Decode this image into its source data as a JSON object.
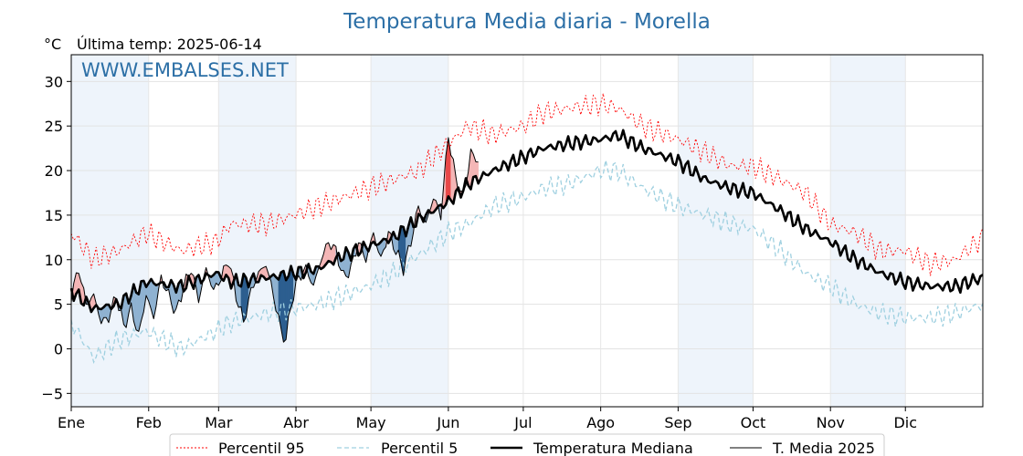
{
  "chart_data": {
    "type": "line",
    "title": "Temperatura Media diaria - Morella",
    "unit_label": "°C",
    "last_temp_label": "Última temp: 2025-06-14",
    "watermark": "WWW.EMBALSES.NET",
    "ylim": [
      -6.5,
      33
    ],
    "y_ticks": [
      -5,
      0,
      5,
      10,
      15,
      20,
      25,
      30
    ],
    "y_tick_labels": [
      "−5",
      "0",
      "5",
      "10",
      "15",
      "20",
      "25",
      "30"
    ],
    "month_labels": [
      "Ene",
      "Feb",
      "Mar",
      "Abr",
      "May",
      "Jun",
      "Jul",
      "Ago",
      "Sep",
      "Oct",
      "Nov",
      "Dic"
    ],
    "month_start_days": [
      1,
      32,
      60,
      91,
      121,
      152,
      182,
      213,
      244,
      274,
      305,
      335
    ],
    "x_days": [
      1,
      366
    ],
    "grid": true,
    "shaded_months": [
      "Ene",
      "Mar",
      "May",
      "Sep",
      "Nov"
    ],
    "colors": {
      "p95": "#ff0000",
      "p5": "#9fd0e0",
      "median": "#000000",
      "current": "#000000",
      "above": "#f4b6b6",
      "below": "#8fb2d1",
      "below_extreme": "#2c5e8f",
      "above_extreme": "#e84848",
      "shade": "#eef4fb",
      "title": "#2c6fa6"
    },
    "legend": {
      "position": "bottom-center",
      "entries": [
        "Percentil 95",
        "Percentil 5",
        "Temperatura Mediana",
        "T. Media 2025"
      ]
    },
    "series": [
      {
        "name": "Temperatura Mediana",
        "key": "median",
        "points": [
          [
            1,
            6.5
          ],
          [
            10,
            4.5
          ],
          [
            20,
            5
          ],
          [
            31,
            7.5
          ],
          [
            45,
            7
          ],
          [
            59,
            8.5
          ],
          [
            65,
            7.5
          ],
          [
            80,
            8
          ],
          [
            90,
            8.5
          ],
          [
            100,
            9
          ],
          [
            110,
            10.5
          ],
          [
            120,
            11.5
          ],
          [
            130,
            12.5
          ],
          [
            140,
            14.5
          ],
          [
            152,
            16.5
          ],
          [
            160,
            18.5
          ],
          [
            170,
            20
          ],
          [
            182,
            21.5
          ],
          [
            190,
            22.5
          ],
          [
            200,
            23
          ],
          [
            213,
            23.5
          ],
          [
            220,
            24
          ],
          [
            230,
            22.5
          ],
          [
            244,
            21
          ],
          [
            255,
            19
          ],
          [
            265,
            18
          ],
          [
            274,
            17.5
          ],
          [
            285,
            15.5
          ],
          [
            295,
            13.5
          ],
          [
            305,
            12
          ],
          [
            315,
            10
          ],
          [
            325,
            8.5
          ],
          [
            335,
            7.5
          ],
          [
            345,
            7
          ],
          [
            355,
            7
          ],
          [
            366,
            8
          ]
        ]
      },
      {
        "name": "Percentil 95",
        "key": "p95",
        "points": [
          [
            1,
            13
          ],
          [
            10,
            10
          ],
          [
            20,
            11
          ],
          [
            31,
            13
          ],
          [
            45,
            11
          ],
          [
            59,
            12
          ],
          [
            65,
            14
          ],
          [
            80,
            14
          ],
          [
            90,
            15
          ],
          [
            100,
            16
          ],
          [
            110,
            17
          ],
          [
            120,
            18
          ],
          [
            130,
            19
          ],
          [
            140,
            20
          ],
          [
            152,
            23
          ],
          [
            160,
            25
          ],
          [
            170,
            24
          ],
          [
            182,
            25
          ],
          [
            190,
            26.5
          ],
          [
            200,
            27
          ],
          [
            213,
            27.5
          ],
          [
            220,
            27
          ],
          [
            230,
            25
          ],
          [
            244,
            23.5
          ],
          [
            255,
            22
          ],
          [
            265,
            20.5
          ],
          [
            274,
            20.5
          ],
          [
            285,
            19
          ],
          [
            295,
            17.5
          ],
          [
            305,
            14
          ],
          [
            315,
            13
          ],
          [
            325,
            11
          ],
          [
            335,
            11
          ],
          [
            345,
            9.5
          ],
          [
            355,
            10
          ],
          [
            366,
            12.5
          ]
        ]
      },
      {
        "name": "Percentil 5",
        "key": "p5",
        "points": [
          [
            1,
            3
          ],
          [
            10,
            -1
          ],
          [
            20,
            1
          ],
          [
            31,
            2
          ],
          [
            45,
            0
          ],
          [
            59,
            2
          ],
          [
            65,
            3
          ],
          [
            80,
            4
          ],
          [
            90,
            4.5
          ],
          [
            100,
            5
          ],
          [
            110,
            6
          ],
          [
            120,
            7
          ],
          [
            130,
            8.5
          ],
          [
            140,
            10.5
          ],
          [
            152,
            13
          ],
          [
            160,
            14
          ],
          [
            170,
            16
          ],
          [
            182,
            17
          ],
          [
            190,
            18
          ],
          [
            200,
            18.5
          ],
          [
            213,
            20
          ],
          [
            220,
            20
          ],
          [
            230,
            18
          ],
          [
            244,
            16
          ],
          [
            255,
            15
          ],
          [
            265,
            14
          ],
          [
            274,
            13.5
          ],
          [
            285,
            11
          ],
          [
            295,
            8.5
          ],
          [
            305,
            7
          ],
          [
            315,
            5
          ],
          [
            325,
            4
          ],
          [
            335,
            3.5
          ],
          [
            345,
            3.5
          ],
          [
            355,
            4
          ],
          [
            366,
            5
          ]
        ]
      },
      {
        "name": "T. Media 2025",
        "key": "current",
        "points": [
          [
            1,
            6
          ],
          [
            4,
            9
          ],
          [
            7,
            5
          ],
          [
            10,
            6
          ],
          [
            13,
            3
          ],
          [
            16,
            3.5
          ],
          [
            19,
            6
          ],
          [
            22,
            2.5
          ],
          [
            25,
            4.5
          ],
          [
            28,
            1.5
          ],
          [
            31,
            6
          ],
          [
            34,
            3.5
          ],
          [
            37,
            8
          ],
          [
            40,
            6
          ],
          [
            43,
            4
          ],
          [
            46,
            7
          ],
          [
            49,
            9
          ],
          [
            52,
            5.5
          ],
          [
            55,
            9
          ],
          [
            58,
            6.5
          ],
          [
            61,
            8
          ],
          [
            64,
            10
          ],
          [
            67,
            6
          ],
          [
            70,
            3
          ],
          [
            73,
            6.5
          ],
          [
            76,
            8.5
          ],
          [
            79,
            9.5
          ],
          [
            82,
            6
          ],
          [
            85,
            2
          ],
          [
            87,
            1
          ],
          [
            89,
            5
          ],
          [
            92,
            8
          ],
          [
            95,
            9
          ],
          [
            98,
            7
          ],
          [
            101,
            10
          ],
          [
            104,
            12
          ],
          [
            107,
            11
          ],
          [
            110,
            8
          ],
          [
            113,
            9
          ],
          [
            116,
            12
          ],
          [
            119,
            10
          ],
          [
            122,
            13
          ],
          [
            125,
            10
          ],
          [
            128,
            13
          ],
          [
            131,
            11
          ],
          [
            134,
            9
          ],
          [
            137,
            12
          ],
          [
            140,
            16
          ],
          [
            143,
            14
          ],
          [
            146,
            17
          ],
          [
            149,
            15
          ],
          [
            152,
            24
          ],
          [
            155,
            19
          ],
          [
            158,
            17
          ],
          [
            161,
            22
          ],
          [
            164,
            21
          ]
        ]
      }
    ]
  }
}
